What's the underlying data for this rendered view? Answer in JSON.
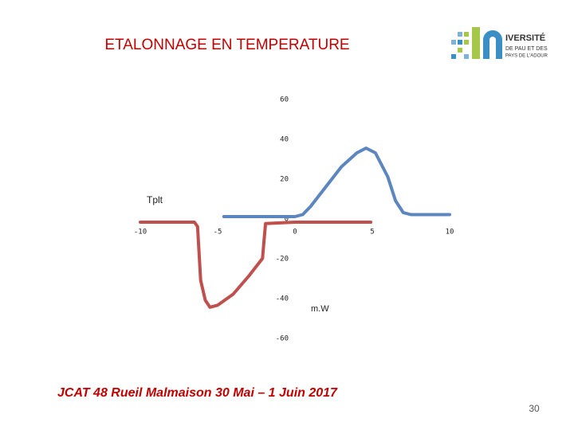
{
  "chart_data": {
    "type": "line",
    "title": "ETALONNAGE EN TEMPERATURE",
    "x_label": "Tplt",
    "y_label": "m.W",
    "xlim": [
      -10,
      10
    ],
    "xticks": [
      -10,
      -5,
      0,
      5,
      10
    ],
    "ylim": [
      -60,
      60
    ],
    "yticks": [
      -60,
      -40,
      -20,
      0,
      20,
      40,
      60
    ],
    "series": [
      {
        "color": "#5b86c0",
        "x": [
          -4.6,
          -2,
          0,
          0.5,
          1,
          2,
          3,
          4,
          4.6,
          5.2,
          6,
          6.5,
          7,
          7.5,
          8,
          10
        ],
        "values": [
          2,
          2,
          2,
          3,
          7,
          17,
          27,
          34,
          36.4,
          34,
          22,
          10,
          4,
          3,
          3,
          3
        ]
      },
      {
        "color": "#c0504d",
        "x": [
          -10,
          -6.5,
          -6.3,
          -6.1,
          -5.8,
          -5.5,
          -5,
          -4,
          -3,
          -2.1,
          -2,
          -1.9,
          0,
          3,
          4.9
        ],
        "values": [
          -0.8,
          -0.8,
          -3,
          -30,
          -40,
          -43.5,
          -42.5,
          -37,
          -28,
          -19,
          -10,
          -1.5,
          -0.8,
          -0.8,
          -0.8
        ]
      }
    ]
  },
  "logo": {
    "line1": "IVERSITÉ",
    "line2": "DE PAU ET DES",
    "line3": "PAYS DE L'ADOUR"
  },
  "footer": "JCAT 48 Rueil Malmaison 30 Mai – 1 Juin 2017",
  "page_number": "30"
}
